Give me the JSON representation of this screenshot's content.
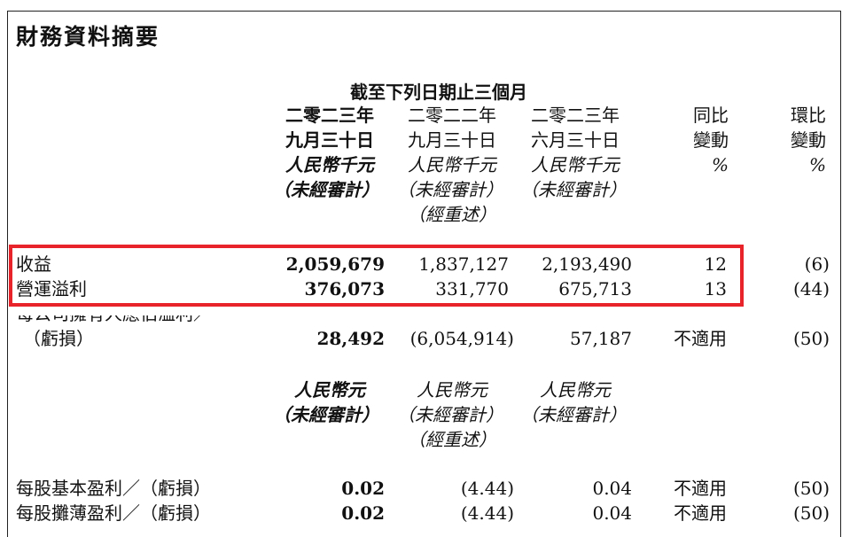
{
  "title": "財務資料摘要",
  "period_header": "截至下列日期止三個月",
  "columns": [
    {
      "line1": "二零二三年",
      "line2": "九月三十日",
      "currency": "人民幣千元",
      "audit": "（未經審計）",
      "restated": "",
      "emphasis": true
    },
    {
      "line1": "二零二二年",
      "line2": "九月三十日",
      "currency": "人民幣千元",
      "audit": "（未經審計）",
      "restated": "（經重述）",
      "emphasis": false
    },
    {
      "line1": "二零二三年",
      "line2": "六月三十日",
      "currency": "人民幣千元",
      "audit": "（未經審計）",
      "restated": "",
      "emphasis": false
    },
    {
      "line1": "同比",
      "line2": "變動",
      "currency": "%"
    },
    {
      "line1": "環比",
      "line2": "變動",
      "currency": "%"
    }
  ],
  "rows": [
    {
      "label": "收益",
      "values": [
        "2,059,679",
        "1,837,127",
        "2,193,490",
        "12",
        "(6)"
      ]
    },
    {
      "label": "營運溢利",
      "values": [
        "376,073",
        "331,770",
        "675,713",
        "13",
        "(44)"
      ]
    },
    {
      "label": "每公司擁有人應佔溢利／",
      "label2": "（虧損）",
      "values": [
        "28,492",
        "(6,054,914)",
        "57,187",
        "不適用",
        "(50)"
      ]
    }
  ],
  "eps_columns": [
    {
      "currency": "人民幣元",
      "audit": "（未經審計）",
      "restated": ""
    },
    {
      "currency": "人民幣元",
      "audit": "（未經審計）",
      "restated": "（經重述）"
    },
    {
      "currency": "人民幣元",
      "audit": "（未經審計）",
      "restated": ""
    }
  ],
  "eps_rows": [
    {
      "label": "每股基本盈利／（虧損）",
      "values": [
        "0.02",
        "(4.44)",
        "0.04",
        "不適用",
        "(50)"
      ]
    },
    {
      "label": "每股攤薄盈利／（虧損）",
      "values": [
        "0.02",
        "(4.44)",
        "0.04",
        "不適用",
        "(50)"
      ]
    }
  ],
  "highlight_color": "#e8232a"
}
